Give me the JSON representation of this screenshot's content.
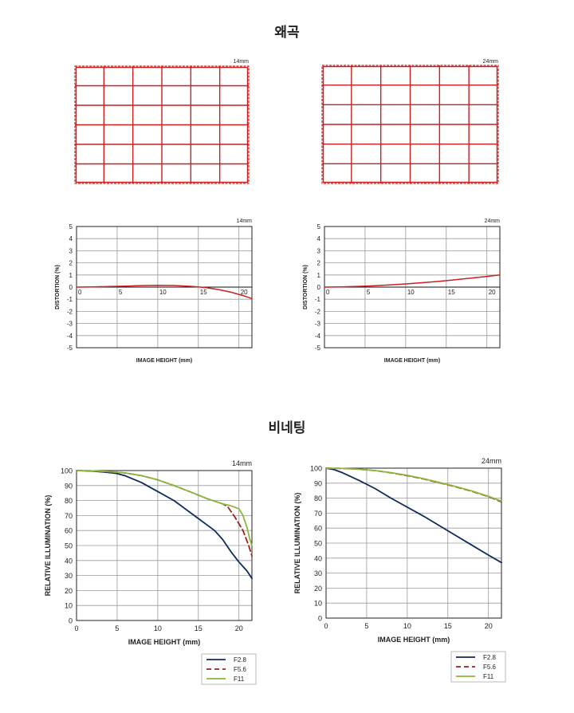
{
  "sections": {
    "distortion_title": "왜곡",
    "vignetting_title": "비네팅"
  },
  "chart_data": [
    {
      "id": "grid14",
      "type": "distortion-grid",
      "focal_label": "14mm",
      "cols": 6,
      "rows": 6,
      "color": "#cc1f1f"
    },
    {
      "id": "grid24",
      "type": "distortion-grid",
      "focal_label": "24mm",
      "cols": 6,
      "rows": 6,
      "color": "#cc1f1f"
    },
    {
      "id": "dist14",
      "type": "line",
      "focal_label": "14mm",
      "xlabel": "IMAGE HEIGHT (mm)",
      "ylabel": "DISTORTION (%)",
      "xlim": [
        0,
        21.6
      ],
      "ylim": [
        -5,
        5
      ],
      "xticks": [
        0,
        5,
        10,
        15,
        20
      ],
      "yticks": [
        5,
        4,
        3,
        2,
        1,
        0,
        -1,
        -2,
        -3,
        -4,
        -5
      ],
      "grid": true,
      "series": [
        {
          "color": "#cc1f1f",
          "x": [
            0,
            2,
            4,
            6,
            8,
            10,
            12,
            14,
            15,
            16,
            17,
            18,
            19,
            20,
            21,
            21.6
          ],
          "y": [
            0,
            0.02,
            0.05,
            0.08,
            0.12,
            0.15,
            0.13,
            0.07,
            0.02,
            -0.05,
            -0.15,
            -0.27,
            -0.42,
            -0.6,
            -0.8,
            -0.95
          ]
        }
      ]
    },
    {
      "id": "dist24",
      "type": "line",
      "focal_label": "24mm",
      "xlabel": "IMAGE HEIGHT (mm)",
      "ylabel": "DISTORTION (%)",
      "xlim": [
        0,
        21.6
      ],
      "ylim": [
        -5,
        5
      ],
      "xticks": [
        0,
        5,
        10,
        15,
        20
      ],
      "yticks": [
        5,
        4,
        3,
        2,
        1,
        0,
        -1,
        -2,
        -3,
        -4,
        -5
      ],
      "grid": true,
      "series": [
        {
          "color": "#cc1f1f",
          "x": [
            0,
            2,
            4,
            6,
            8,
            10,
            12,
            14,
            16,
            18,
            20,
            21.6
          ],
          "y": [
            0,
            0.02,
            0.06,
            0.11,
            0.18,
            0.26,
            0.36,
            0.47,
            0.6,
            0.74,
            0.88,
            1.0
          ]
        }
      ]
    },
    {
      "id": "vig14",
      "type": "line",
      "focal_label": "14mm",
      "xlabel": "IMAGE HEIGHT (mm)",
      "ylabel": "RELATIVE ILLUMINATION (%)",
      "xlim": [
        0,
        21.6
      ],
      "ylim": [
        0,
        100
      ],
      "xticks": [
        0,
        5,
        10,
        15,
        20
      ],
      "yticks": [
        100,
        90,
        80,
        70,
        60,
        50,
        40,
        30,
        20,
        10,
        0
      ],
      "grid": true,
      "series": [
        {
          "name": "F2.8",
          "color": "#0f2a5c",
          "dash": false,
          "x": [
            0,
            2,
            4,
            5,
            6,
            8,
            10,
            12,
            14,
            16,
            17,
            18,
            19,
            20,
            21,
            21.6
          ],
          "y": [
            100,
            99.6,
            98.7,
            98,
            96.5,
            92,
            86,
            80,
            72,
            64,
            60,
            54,
            46,
            39,
            33,
            28
          ]
        },
        {
          "name": "F5.6",
          "color": "#a11f1f",
          "dash": true,
          "x": [
            0,
            2,
            4,
            6,
            8,
            10,
            12,
            14,
            16,
            18,
            18.6,
            19.5,
            20.5,
            21.2,
            21.6
          ],
          "y": [
            100,
            99.8,
            99.3,
            98.4,
            96.6,
            93.8,
            90,
            85.8,
            81.4,
            77.8,
            76,
            69,
            60,
            50,
            43
          ]
        },
        {
          "name": "F11",
          "color": "#8ab83c",
          "dash": false,
          "x": [
            0,
            2,
            4,
            6,
            8,
            10,
            12,
            14,
            16,
            18,
            19,
            20,
            20.5,
            21,
            21.3,
            21.6
          ],
          "y": [
            100,
            99.8,
            99.3,
            98.4,
            96.6,
            93.8,
            90,
            85.8,
            81.4,
            77.8,
            76.5,
            74.5,
            70,
            62,
            55,
            50
          ]
        }
      ]
    },
    {
      "id": "vig24",
      "type": "line",
      "focal_label": "24mm",
      "xlabel": "IMAGE HEIGHT (mm)",
      "ylabel": "RELATIVE ILLUMINATION (%)",
      "xlim": [
        0,
        21.6
      ],
      "ylim": [
        0,
        100
      ],
      "xticks": [
        0,
        5,
        10,
        15,
        20
      ],
      "yticks": [
        100,
        90,
        80,
        70,
        60,
        50,
        40,
        30,
        20,
        10,
        0
      ],
      "grid": true,
      "series": [
        {
          "name": "F2.8",
          "color": "#0f2a5c",
          "dash": false,
          "x": [
            0,
            1,
            2,
            4,
            6,
            8,
            10,
            12,
            14,
            16,
            18,
            20,
            21.6
          ],
          "y": [
            100,
            99,
            97,
            92,
            86.5,
            80,
            74,
            68,
            61.5,
            55,
            48.5,
            42,
            37
          ]
        },
        {
          "name": "F5.6",
          "color": "#a11f1f",
          "dash": true,
          "x": [
            0,
            2,
            4,
            6,
            8,
            10,
            12,
            14,
            16,
            18,
            20,
            21.6
          ],
          "y": [
            100,
            99.8,
            99.3,
            98.4,
            96.9,
            95,
            92.8,
            90.2,
            87.5,
            84.5,
            81,
            77.5
          ]
        },
        {
          "name": "F11",
          "color": "#8ab83c",
          "dash": false,
          "x": [
            0,
            2,
            4,
            6,
            8,
            10,
            12,
            14,
            16,
            18,
            20,
            21.6
          ],
          "y": [
            100,
            99.8,
            99.3,
            98.4,
            97,
            95.2,
            93,
            90.4,
            87.7,
            84.7,
            81.2,
            78
          ]
        }
      ]
    }
  ]
}
